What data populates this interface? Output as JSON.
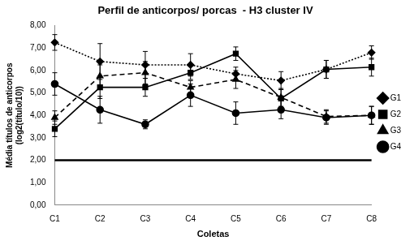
{
  "chart_data": {
    "type": "line",
    "title": "Perfil de anticorpos/ porcas  - H3 cluster IV",
    "x_label": "Coletas",
    "y_label": [
      "Média títulos de anticorpos",
      "(log2(título/10))"
    ],
    "categories": [
      "C1",
      "C2",
      "C3",
      "C4",
      "C5",
      "C6",
      "C7",
      "C8"
    ],
    "series": [
      {
        "name": "G1",
        "color": "#000000",
        "marker": "diamond",
        "line_style": "dotted",
        "values": [
          7.25,
          6.4,
          6.25,
          6.25,
          5.85,
          5.55,
          6.05,
          6.8
        ],
        "errors": [
          0.35,
          0.8,
          0.6,
          0.5,
          0.3,
          0.4,
          0.4,
          0.3
        ]
      },
      {
        "name": "G2",
        "color": "#000000",
        "marker": "square",
        "line_style": "solid",
        "values": [
          3.4,
          5.25,
          5.25,
          5.9,
          6.75,
          4.75,
          6.05,
          6.15
        ],
        "errors": [
          0.35,
          0.5,
          0.4,
          0.3,
          0.3,
          0.4,
          0.4,
          0.4
        ]
      },
      {
        "name": "G3",
        "color": "#000000",
        "marker": "triangle",
        "line_style": "dashed",
        "values": [
          3.9,
          5.75,
          5.9,
          5.25,
          5.6,
          4.8,
          3.95,
          4.0
        ],
        "errors": [
          0.3,
          0.5,
          0.5,
          0.3,
          0.4,
          0.4,
          0.3,
          0.4
        ]
      },
      {
        "name": "G4",
        "color": "#000000",
        "marker": "circle",
        "line_style": "solid",
        "values": [
          5.4,
          4.25,
          3.6,
          4.9,
          4.1,
          4.25,
          3.9,
          4.0
        ],
        "errors": [
          0.5,
          0.6,
          0.2,
          0.5,
          0.5,
          0.4,
          0.3,
          0.4
        ]
      }
    ],
    "reference_line": 2,
    "ylim": [
      0,
      8
    ],
    "yticks": [
      {
        "value": 0,
        "label": "0,00"
      },
      {
        "value": 1,
        "label": "1,00"
      },
      {
        "value": 2,
        "label": "2,00"
      },
      {
        "value": 3,
        "label": "3,00"
      },
      {
        "value": 4,
        "label": "4,00"
      },
      {
        "value": 5,
        "label": "5,00"
      },
      {
        "value": 6,
        "label": "6,00"
      },
      {
        "value": 7,
        "label": "7,00"
      },
      {
        "value": 8,
        "label": "8,00"
      }
    ],
    "grid": false,
    "legend": "right"
  }
}
